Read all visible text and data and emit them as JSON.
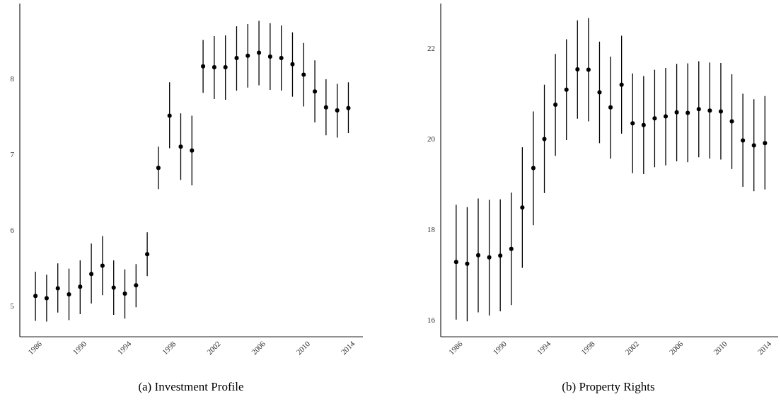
{
  "chart_data": [
    {
      "type": "scatter",
      "title": "(a) Investment Profile",
      "marker": "circle",
      "grid": false,
      "x": [
        1986,
        1987,
        1988,
        1989,
        1990,
        1991,
        1992,
        1993,
        1994,
        1995,
        1996,
        1997,
        1998,
        1999,
        2000,
        2001,
        2002,
        2003,
        2004,
        2005,
        2006,
        2007,
        2008,
        2009,
        2010,
        2011,
        2012,
        2013,
        2014
      ],
      "series": [
        {
          "color": "#000000",
          "values": [
            5.14,
            5.11,
            5.24,
            5.16,
            5.26,
            5.43,
            5.54,
            5.25,
            5.17,
            5.28,
            5.69,
            6.83,
            7.52,
            7.11,
            7.06,
            8.17,
            8.16,
            8.16,
            8.28,
            8.31,
            8.35,
            8.3,
            8.28,
            8.2,
            8.06,
            7.84,
            7.63,
            7.59,
            7.62
          ],
          "errors": [
            [
              4.81,
              5.46
            ],
            [
              4.8,
              5.42
            ],
            [
              4.92,
              5.57
            ],
            [
              4.82,
              5.5
            ],
            [
              4.9,
              5.61
            ],
            [
              5.04,
              5.83
            ],
            [
              5.15,
              5.93
            ],
            [
              4.89,
              5.61
            ],
            [
              4.84,
              5.49
            ],
            [
              4.99,
              5.56
            ],
            [
              5.4,
              5.98
            ],
            [
              6.55,
              7.11
            ],
            [
              7.09,
              7.96
            ],
            [
              6.67,
              7.55
            ],
            [
              6.6,
              7.52
            ],
            [
              7.82,
              8.52
            ],
            [
              7.74,
              8.57
            ],
            [
              7.73,
              8.58
            ],
            [
              7.85,
              8.7
            ],
            [
              7.89,
              8.73
            ],
            [
              7.92,
              8.77
            ],
            [
              7.86,
              8.74
            ],
            [
              7.85,
              8.71
            ],
            [
              7.77,
              8.62
            ],
            [
              7.64,
              8.48
            ],
            [
              7.43,
              8.25
            ],
            [
              7.26,
              8.0
            ],
            [
              7.23,
              7.94
            ],
            [
              7.29,
              7.96
            ]
          ]
        }
      ],
      "xlim": [
        1984.6,
        2015.3
      ],
      "xticks": [
        1986,
        1990,
        1994,
        1998,
        2002,
        2006,
        2010,
        2014
      ],
      "ylim": [
        4.6,
        9.0
      ],
      "yticks": [
        5,
        6,
        7,
        8
      ]
    },
    {
      "type": "scatter",
      "title": "(b) Property Rights",
      "marker": "circle",
      "grid": false,
      "x": [
        1986,
        1987,
        1988,
        1989,
        1990,
        1991,
        1992,
        1993,
        1994,
        1995,
        1996,
        1997,
        1998,
        1999,
        2000,
        2001,
        2002,
        2003,
        2004,
        2005,
        2006,
        2007,
        2008,
        2009,
        2010,
        2011,
        2012,
        2013,
        2014
      ],
      "series": [
        {
          "color": "#000000",
          "values": [
            17.3,
            17.26,
            17.45,
            17.4,
            17.44,
            17.59,
            18.5,
            19.37,
            20.01,
            20.77,
            21.1,
            21.55,
            21.54,
            21.04,
            20.71,
            21.21,
            20.36,
            20.32,
            20.47,
            20.51,
            20.6,
            20.59,
            20.67,
            20.64,
            20.62,
            20.4,
            19.98,
            19.87,
            19.92
          ],
          "errors": [
            [
              16.03,
              18.56
            ],
            [
              15.99,
              18.51
            ],
            [
              16.19,
              18.7
            ],
            [
              16.12,
              18.67
            ],
            [
              16.21,
              18.68
            ],
            [
              16.35,
              18.83
            ],
            [
              17.17,
              19.83
            ],
            [
              18.11,
              20.62
            ],
            [
              18.82,
              21.21
            ],
            [
              19.64,
              21.89
            ],
            [
              19.99,
              22.21
            ],
            [
              20.46,
              22.63
            ],
            [
              20.4,
              22.68
            ],
            [
              19.92,
              22.16
            ],
            [
              19.58,
              21.83
            ],
            [
              20.13,
              22.29
            ],
            [
              19.26,
              21.46
            ],
            [
              19.24,
              21.4
            ],
            [
              19.39,
              21.54
            ],
            [
              19.43,
              21.58
            ],
            [
              19.52,
              21.67
            ],
            [
              19.5,
              21.68
            ],
            [
              19.61,
              21.73
            ],
            [
              19.58,
              21.7
            ],
            [
              19.56,
              21.69
            ],
            [
              19.35,
              21.44
            ],
            [
              18.96,
              21.01
            ],
            [
              18.86,
              20.89
            ],
            [
              18.9,
              20.96
            ]
          ]
        }
      ],
      "xlim": [
        1984.6,
        2015.2
      ],
      "xticks": [
        1986,
        1990,
        1994,
        1998,
        2002,
        2006,
        2010,
        2014
      ],
      "ylim": [
        15.65,
        23.0
      ],
      "yticks": [
        16,
        18,
        20,
        22
      ]
    }
  ]
}
